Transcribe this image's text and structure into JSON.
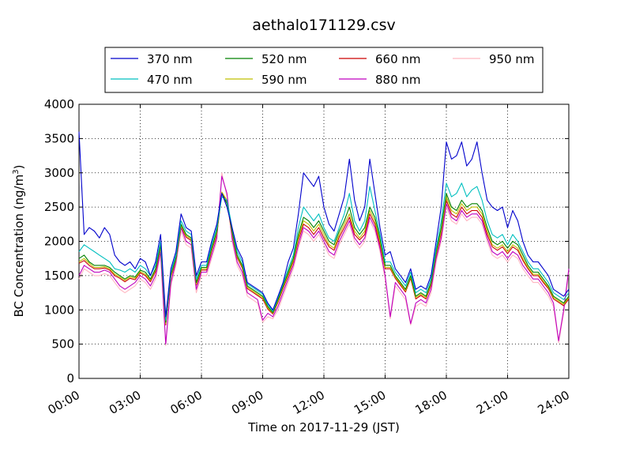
{
  "chart_data": {
    "type": "line",
    "title": "aethalo171129.csv",
    "xlabel": "Time on 2017-11-29 (JST)",
    "ylabel_main": "BC Concentration (ng/m",
    "ylabel_sup": "3",
    "ylabel_end": ")",
    "xlim": [
      0,
      24
    ],
    "ylim": [
      0,
      4000
    ],
    "grid": true,
    "legend_position": "top",
    "x_ticks": [
      {
        "value": 0,
        "label": "00:00"
      },
      {
        "value": 3,
        "label": "03:00"
      },
      {
        "value": 6,
        "label": "06:00"
      },
      {
        "value": 9,
        "label": "09:00"
      },
      {
        "value": 12,
        "label": "12:00"
      },
      {
        "value": 15,
        "label": "15:00"
      },
      {
        "value": 18,
        "label": "18:00"
      },
      {
        "value": 21,
        "label": "21:00"
      },
      {
        "value": 24,
        "label": "24:00"
      }
    ],
    "y_ticks": [
      {
        "value": 0,
        "label": "0"
      },
      {
        "value": 500,
        "label": "500"
      },
      {
        "value": 1000,
        "label": "1000"
      },
      {
        "value": 1500,
        "label": "1500"
      },
      {
        "value": 2000,
        "label": "2000"
      },
      {
        "value": 2500,
        "label": "2500"
      },
      {
        "value": 3000,
        "label": "3000"
      },
      {
        "value": 3500,
        "label": "3500"
      },
      {
        "value": 4000,
        "label": "4000"
      }
    ],
    "x": [
      0.0,
      0.25,
      0.5,
      0.75,
      1.0,
      1.25,
      1.5,
      1.75,
      2.0,
      2.25,
      2.5,
      2.75,
      3.0,
      3.25,
      3.5,
      3.75,
      4.0,
      4.25,
      4.5,
      4.75,
      5.0,
      5.25,
      5.5,
      5.75,
      6.0,
      6.25,
      6.5,
      6.75,
      7.0,
      7.25,
      7.5,
      7.75,
      8.0,
      8.25,
      8.5,
      8.75,
      9.0,
      9.25,
      9.5,
      9.75,
      10.0,
      10.25,
      10.5,
      10.75,
      11.0,
      11.25,
      11.5,
      11.75,
      12.0,
      12.25,
      12.5,
      12.75,
      13.0,
      13.25,
      13.5,
      13.75,
      14.0,
      14.25,
      14.5,
      14.75,
      15.0,
      15.25,
      15.5,
      15.75,
      16.0,
      16.25,
      16.5,
      16.75,
      17.0,
      17.25,
      17.5,
      17.75,
      18.0,
      18.25,
      18.5,
      18.75,
      19.0,
      19.25,
      19.5,
      19.75,
      20.0,
      20.25,
      20.5,
      20.75,
      21.0,
      21.25,
      21.5,
      21.75,
      22.0,
      22.25,
      22.5,
      22.75,
      23.0,
      23.25,
      23.5,
      23.75,
      24.0
    ],
    "series": [
      {
        "name": "370 nm",
        "color": "#0000cc",
        "values": [
          3600,
          2100,
          2200,
          2150,
          2050,
          2200,
          2100,
          1800,
          1700,
          1650,
          1700,
          1600,
          1750,
          1700,
          1500,
          1700,
          2100,
          900,
          1600,
          1850,
          2400,
          2200,
          2150,
          1500,
          1700,
          1700,
          2000,
          2250,
          2700,
          2500,
          2200,
          1900,
          1750,
          1400,
          1350,
          1300,
          1250,
          1100,
          1000,
          1200,
          1400,
          1700,
          1900,
          2400,
          3000,
          2900,
          2800,
          2950,
          2500,
          2250,
          2150,
          2400,
          2650,
          3200,
          2600,
          2300,
          2500,
          3200,
          2700,
          2200,
          1800,
          1850,
          1600,
          1500,
          1400,
          1600,
          1300,
          1350,
          1300,
          1500,
          2000,
          2500,
          3450,
          3200,
          3250,
          3450,
          3100,
          3200,
          3450,
          3000,
          2600,
          2500,
          2450,
          2500,
          2200,
          2450,
          2300,
          2000,
          1800,
          1700,
          1700,
          1600,
          1500,
          1300,
          1250,
          1200,
          1300
        ]
      },
      {
        "name": "470 nm",
        "color": "#00bfbf",
        "values": [
          1850,
          1950,
          1900,
          1850,
          1800,
          1750,
          1700,
          1600,
          1580,
          1550,
          1600,
          1550,
          1650,
          1600,
          1500,
          1650,
          2000,
          850,
          1550,
          1800,
          2300,
          2150,
          2100,
          1450,
          1650,
          1650,
          1950,
          2200,
          2650,
          2600,
          2200,
          1850,
          1700,
          1380,
          1330,
          1280,
          1230,
          1080,
          980,
          1180,
          1380,
          1600,
          1800,
          2200,
          2500,
          2400,
          2300,
          2400,
          2200,
          2050,
          2000,
          2200,
          2400,
          2700,
          2300,
          2150,
          2300,
          2800,
          2450,
          2100,
          1700,
          1700,
          1550,
          1450,
          1350,
          1550,
          1250,
          1300,
          1250,
          1450,
          1900,
          2300,
          2850,
          2650,
          2700,
          2850,
          2650,
          2750,
          2800,
          2600,
          2300,
          2100,
          2050,
          2100,
          1950,
          2100,
          2000,
          1850,
          1700,
          1600,
          1600,
          1500,
          1400,
          1250,
          1200,
          1150,
          1250
        ]
      },
      {
        "name": "520 nm",
        "color": "#008000",
        "values": [
          1750,
          1800,
          1700,
          1650,
          1650,
          1650,
          1620,
          1550,
          1500,
          1450,
          1500,
          1480,
          1580,
          1550,
          1450,
          1600,
          1950,
          820,
          1520,
          1760,
          2250,
          2100,
          2050,
          1400,
          1620,
          1620,
          1900,
          2150,
          2700,
          2550,
          2150,
          1800,
          1650,
          1350,
          1300,
          1250,
          1200,
          1050,
          960,
          1150,
          1350,
          1550,
          1750,
          2100,
          2350,
          2300,
          2200,
          2300,
          2150,
          2000,
          1950,
          2150,
          2300,
          2500,
          2200,
          2100,
          2200,
          2500,
          2350,
          2050,
          1650,
          1650,
          1500,
          1400,
          1300,
          1500,
          1200,
          1250,
          1200,
          1400,
          1850,
          2200,
          2700,
          2500,
          2450,
          2600,
          2500,
          2550,
          2550,
          2450,
          2200,
          2000,
          1950,
          2000,
          1900,
          2000,
          1950,
          1800,
          1650,
          1550,
          1550,
          1450,
          1350,
          1200,
          1150,
          1100,
          1200
        ]
      },
      {
        "name": "590 nm",
        "color": "#bfbf00",
        "values": [
          1700,
          1750,
          1680,
          1620,
          1620,
          1630,
          1600,
          1520,
          1480,
          1430,
          1480,
          1460,
          1560,
          1520,
          1430,
          1580,
          1930,
          800,
          1500,
          1740,
          2230,
          2080,
          2030,
          1380,
          1600,
          1600,
          1880,
          2120,
          2720,
          2600,
          2120,
          1780,
          1630,
          1330,
          1280,
          1230,
          1180,
          1030,
          950,
          1130,
          1330,
          1520,
          1720,
          2050,
          2300,
          2250,
          2150,
          2250,
          2100,
          1950,
          1900,
          2100,
          2250,
          2400,
          2150,
          2050,
          2150,
          2450,
          2300,
          2000,
          1620,
          1620,
          1480,
          1380,
          1280,
          1480,
          1180,
          1230,
          1180,
          1380,
          1820,
          2150,
          2650,
          2450,
          2400,
          2550,
          2450,
          2500,
          2500,
          2400,
          2150,
          1950,
          1900,
          1950,
          1850,
          1950,
          1900,
          1750,
          1620,
          1520,
          1520,
          1420,
          1330,
          1180,
          1130,
          1080,
          1180
        ]
      },
      {
        "name": "660 nm",
        "color": "#cc0000",
        "values": [
          1680,
          1720,
          1650,
          1600,
          1600,
          1610,
          1580,
          1500,
          1460,
          1410,
          1460,
          1440,
          1540,
          1500,
          1410,
          1560,
          1910,
          780,
          1480,
          1720,
          2210,
          2060,
          2010,
          1360,
          1580,
          1580,
          1860,
          2100,
          2700,
          2580,
          2100,
          1760,
          1610,
          1310,
          1260,
          1210,
          1160,
          1010,
          940,
          1110,
          1310,
          1500,
          1700,
          2020,
          2250,
          2200,
          2100,
          2200,
          2050,
          1920,
          1870,
          2060,
          2200,
          2350,
          2100,
          2020,
          2100,
          2400,
          2250,
          1950,
          1600,
          1600,
          1460,
          1360,
          1260,
          1460,
          1160,
          1210,
          1160,
          1360,
          1800,
          2120,
          2600,
          2400,
          2350,
          2500,
          2400,
          2450,
          2450,
          2350,
          2100,
          1920,
          1870,
          1920,
          1820,
          1920,
          1870,
          1720,
          1600,
          1500,
          1500,
          1400,
          1310,
          1160,
          1110,
          1060,
          1160
        ]
      },
      {
        "name": "880 nm",
        "color": "#bf00bf",
        "values": [
          1500,
          1650,
          1600,
          1550,
          1550,
          1580,
          1550,
          1450,
          1350,
          1300,
          1350,
          1400,
          1500,
          1450,
          1350,
          1500,
          1850,
          500,
          1400,
          1700,
          2200,
          2000,
          1950,
          1300,
          1550,
          1550,
          1800,
          2050,
          2950,
          2700,
          2050,
          1700,
          1550,
          1250,
          1200,
          1150,
          850,
          950,
          900,
          1050,
          1250,
          1450,
          1650,
          1950,
          2200,
          2150,
          2050,
          2150,
          2000,
          1850,
          1800,
          2000,
          2150,
          2300,
          2050,
          1950,
          2050,
          2350,
          2200,
          1900,
          1500,
          900,
          1400,
          1300,
          1200,
          800,
          1100,
          1150,
          1100,
          1300,
          1750,
          2050,
          2550,
          2350,
          2300,
          2450,
          2350,
          2400,
          2400,
          2300,
          2050,
          1850,
          1800,
          1850,
          1750,
          1850,
          1800,
          1650,
          1550,
          1450,
          1450,
          1350,
          1250,
          1100,
          550,
          1000,
          1600
        ]
      },
      {
        "name": "950 nm",
        "color": "#ffb6c1",
        "values": [
          1450,
          1600,
          1550,
          1500,
          1500,
          1530,
          1500,
          1400,
          1300,
          1250,
          1300,
          1350,
          1450,
          1400,
          1300,
          1450,
          1800,
          480,
          1350,
          1650,
          2150,
          1950,
          1900,
          1250,
          1500,
          1500,
          1750,
          2000,
          3000,
          2650,
          2000,
          1650,
          1500,
          1200,
          1150,
          1100,
          820,
          900,
          870,
          1000,
          1200,
          1400,
          1600,
          1900,
          2150,
          2100,
          2000,
          2100,
          1950,
          1800,
          1750,
          1950,
          2100,
          2250,
          2000,
          1900,
          2000,
          2300,
          2150,
          1850,
          1450,
          870,
          1350,
          1250,
          1150,
          780,
          1050,
          1100,
          1050,
          1250,
          1700,
          2000,
          2500,
          2300,
          2250,
          2400,
          2300,
          2350,
          2350,
          2250,
          2000,
          1800,
          1750,
          1800,
          1700,
          1800,
          1750,
          1600,
          1500,
          1400,
          1400,
          1300,
          1200,
          1050,
          520,
          950,
          1550
        ]
      }
    ]
  }
}
